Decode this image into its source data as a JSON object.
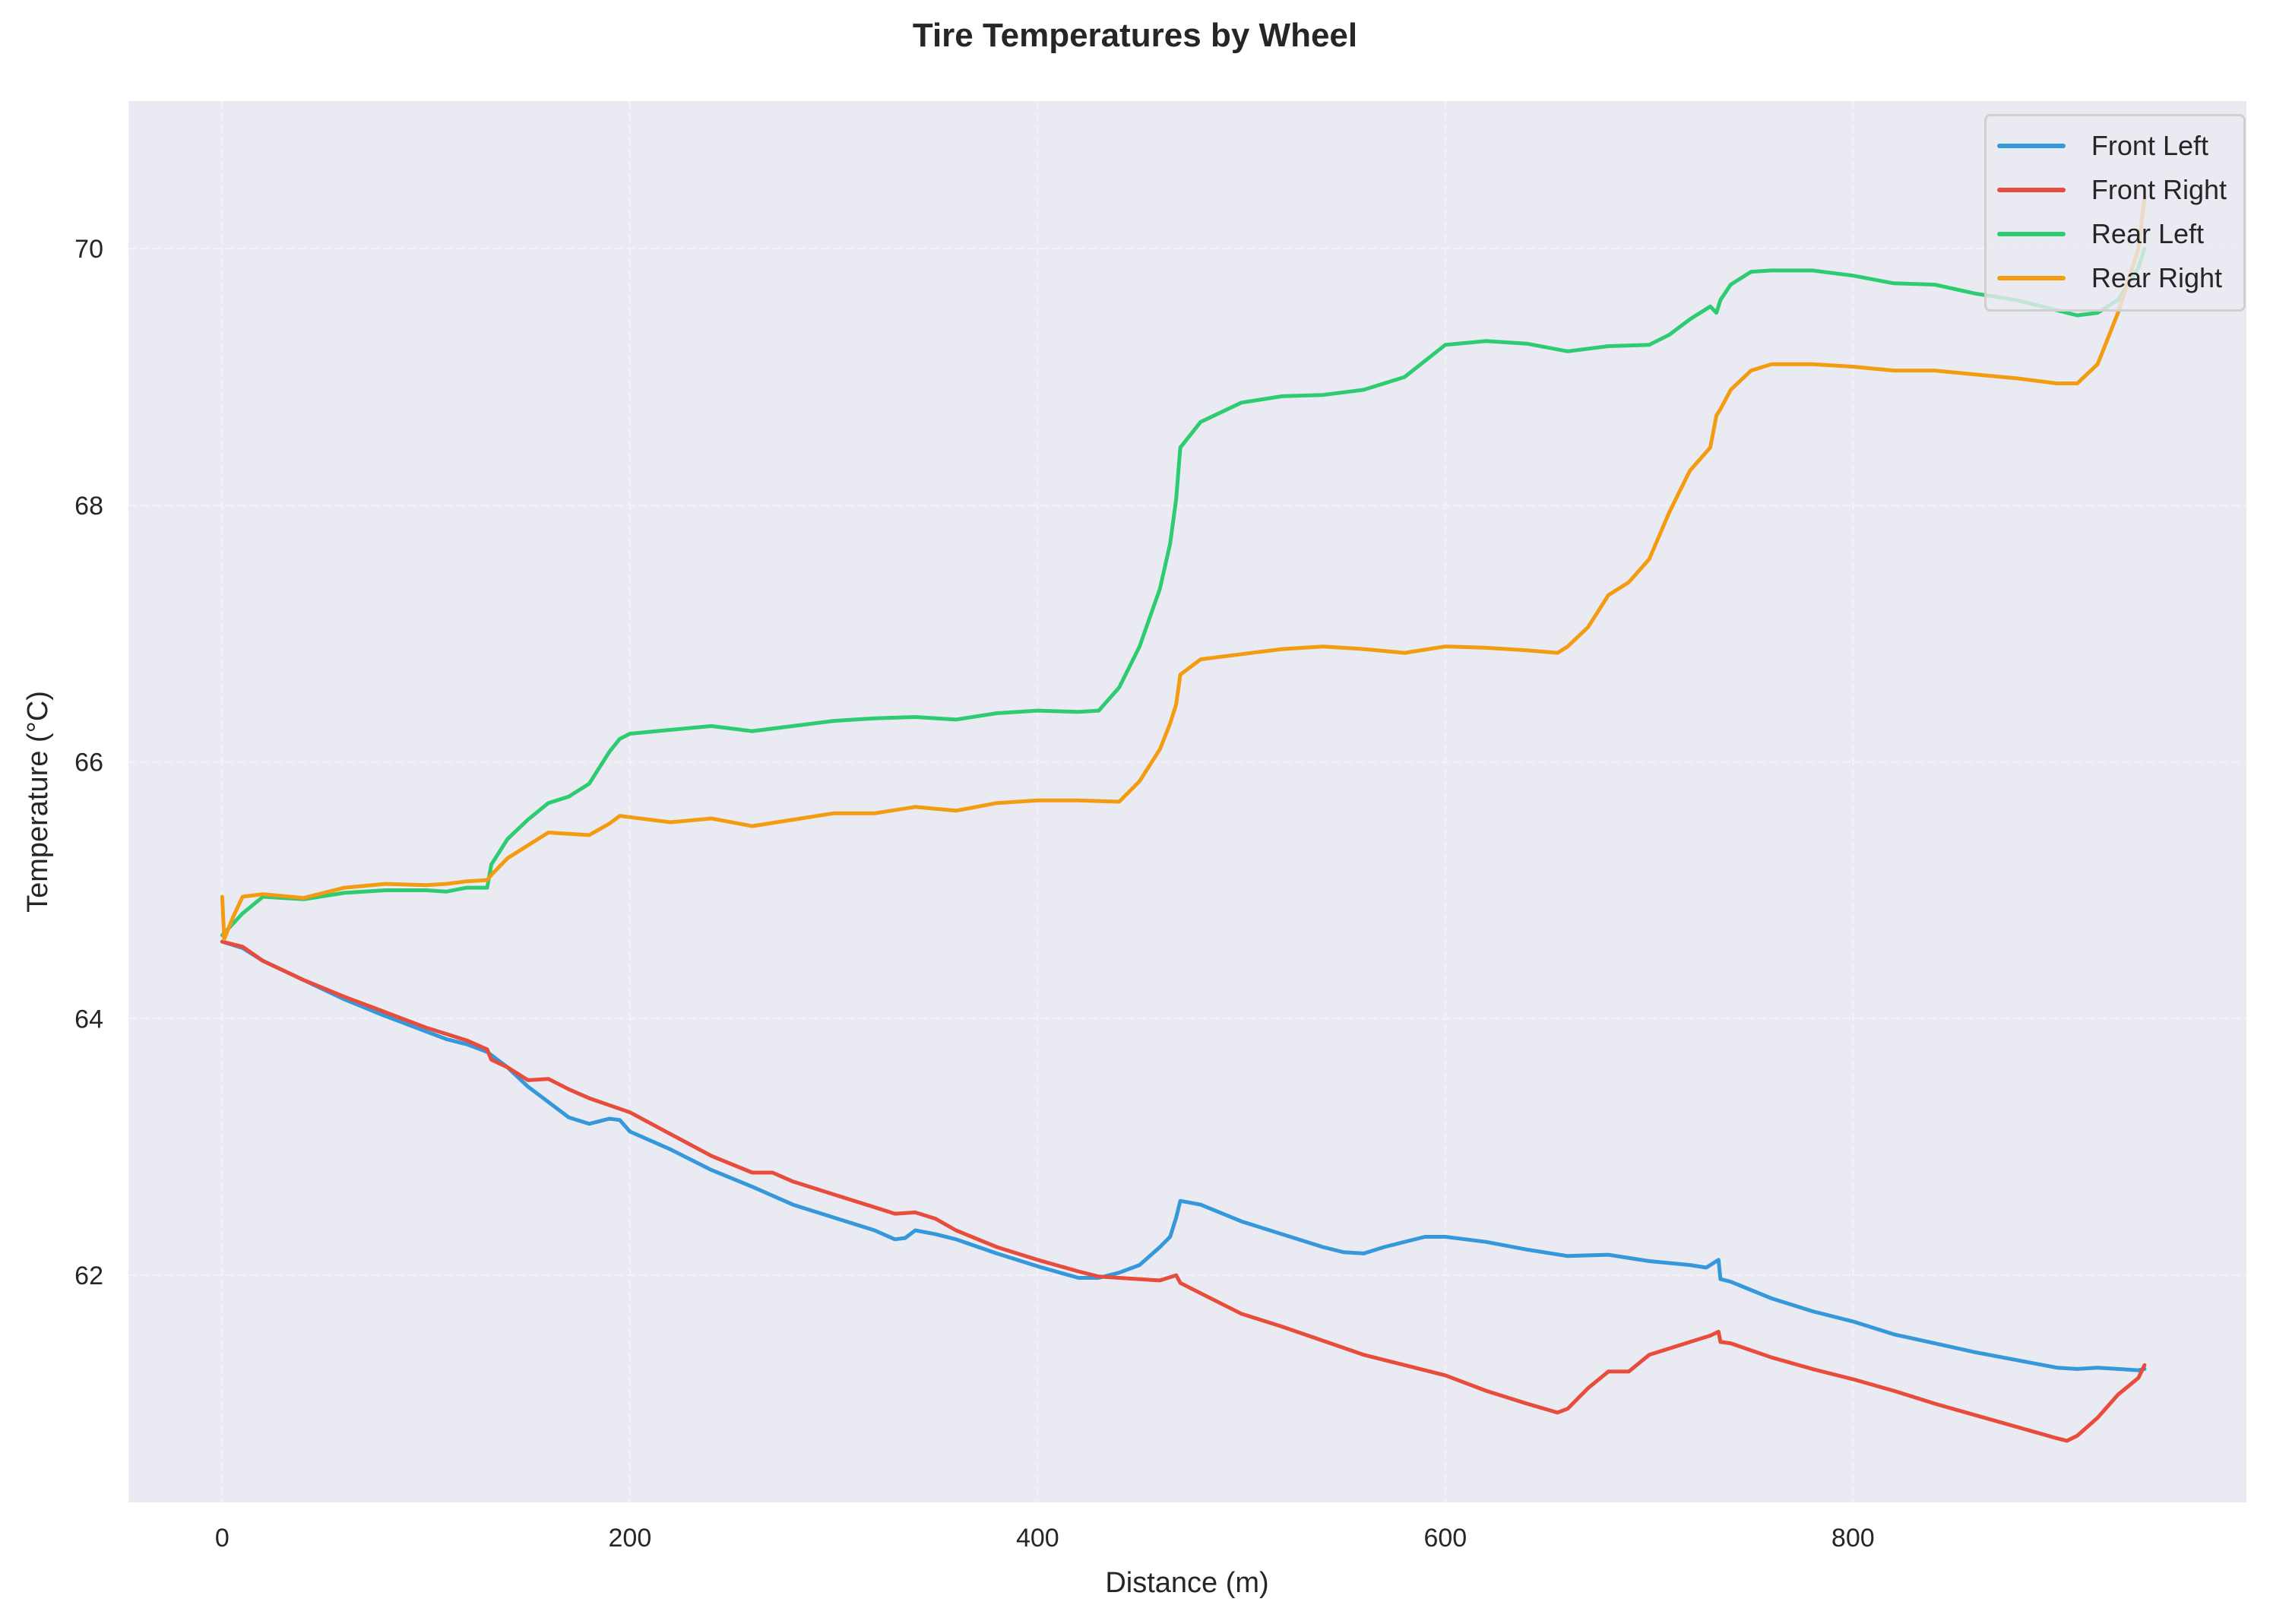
{
  "chart": {
    "title": "Tire Temperatures by Wheel",
    "xlabel": "Distance (m)",
    "ylabel": "Temperature (°C)"
  },
  "chart_data": {
    "type": "line",
    "title": "Tire Temperatures by Wheel",
    "xlabel": "Distance (m)",
    "ylabel": "Temperature (°C)",
    "xlim": [
      -46,
      993
    ],
    "ylim": [
      60.23,
      71.15
    ],
    "xticks": [
      0,
      200,
      400,
      600,
      800
    ],
    "yticks": [
      62,
      64,
      66,
      68,
      70
    ],
    "grid": true,
    "legend_position": "upper right",
    "background": "#EAEAF2",
    "series": [
      {
        "name": "Front Left",
        "color": "#3498DB",
        "x": [
          0,
          10,
          20,
          40,
          60,
          80,
          100,
          110,
          120,
          130,
          140,
          150,
          160,
          170,
          180,
          190,
          195,
          200,
          220,
          240,
          260,
          280,
          300,
          320,
          330,
          335,
          340,
          350,
          360,
          380,
          400,
          420,
          430,
          440,
          450,
          460,
          465,
          468,
          470,
          480,
          500,
          520,
          540,
          550,
          560,
          570,
          580,
          590,
          600,
          620,
          640,
          660,
          680,
          700,
          720,
          728,
          734,
          735,
          740,
          760,
          780,
          800,
          820,
          840,
          860,
          880,
          900,
          910,
          920,
          930,
          940,
          943
        ],
        "y": [
          64.6,
          64.55,
          64.45,
          64.3,
          64.15,
          64.02,
          63.9,
          63.84,
          63.8,
          63.74,
          63.62,
          63.47,
          63.35,
          63.23,
          63.18,
          63.22,
          63.21,
          63.12,
          62.98,
          62.82,
          62.69,
          62.55,
          62.45,
          62.35,
          62.28,
          62.29,
          62.35,
          62.32,
          62.28,
          62.17,
          62.07,
          61.98,
          61.98,
          62.02,
          62.08,
          62.22,
          62.3,
          62.45,
          62.58,
          62.55,
          62.42,
          62.32,
          62.22,
          62.18,
          62.17,
          62.22,
          62.26,
          62.3,
          62.3,
          62.26,
          62.2,
          62.15,
          62.16,
          62.11,
          62.08,
          62.06,
          62.12,
          61.97,
          61.95,
          61.82,
          61.72,
          61.64,
          61.54,
          61.47,
          61.4,
          61.34,
          61.28,
          61.27,
          61.28,
          61.27,
          61.26,
          61.27
        ]
      },
      {
        "name": "Front Right",
        "color": "#E74C3C",
        "x": [
          0,
          10,
          20,
          40,
          60,
          80,
          100,
          110,
          120,
          130,
          132,
          140,
          150,
          160,
          170,
          180,
          200,
          220,
          240,
          260,
          270,
          280,
          300,
          320,
          330,
          340,
          350,
          360,
          380,
          400,
          420,
          430,
          440,
          460,
          468,
          470,
          480,
          500,
          520,
          540,
          560,
          580,
          600,
          620,
          640,
          655,
          660,
          670,
          680,
          690,
          700,
          720,
          730,
          734,
          735,
          740,
          760,
          780,
          800,
          820,
          840,
          860,
          880,
          900,
          905,
          910,
          920,
          930,
          940,
          943
        ],
        "y": [
          64.6,
          64.56,
          64.45,
          64.3,
          64.17,
          64.05,
          63.93,
          63.88,
          63.83,
          63.76,
          63.68,
          63.62,
          63.52,
          63.53,
          63.45,
          63.38,
          63.27,
          63.1,
          62.93,
          62.8,
          62.8,
          62.73,
          62.63,
          62.53,
          62.48,
          62.49,
          62.44,
          62.35,
          62.22,
          62.12,
          62.03,
          61.99,
          61.98,
          61.96,
          62.0,
          61.94,
          61.86,
          61.7,
          61.6,
          61.49,
          61.38,
          61.3,
          61.22,
          61.1,
          61.0,
          60.93,
          60.96,
          61.12,
          61.25,
          61.25,
          61.38,
          61.48,
          61.53,
          61.56,
          61.48,
          61.47,
          61.36,
          61.27,
          61.19,
          61.1,
          61.0,
          60.91,
          60.82,
          60.73,
          60.71,
          60.75,
          60.89,
          61.07,
          61.2,
          61.3
        ]
      },
      {
        "name": "Rear Left",
        "color": "#2ECC71",
        "x": [
          0,
          10,
          20,
          40,
          60,
          80,
          100,
          110,
          120,
          130,
          132,
          140,
          150,
          160,
          170,
          180,
          190,
          195,
          200,
          220,
          240,
          260,
          280,
          300,
          320,
          340,
          360,
          380,
          400,
          420,
          430,
          440,
          450,
          460,
          465,
          468,
          470,
          480,
          500,
          520,
          540,
          560,
          580,
          600,
          620,
          640,
          660,
          680,
          700,
          710,
          720,
          730,
          733,
          735,
          740,
          750,
          760,
          780,
          800,
          820,
          840,
          860,
          880,
          900,
          910,
          920,
          930,
          940,
          943
        ],
        "y": [
          64.65,
          64.82,
          64.95,
          64.93,
          64.98,
          65.0,
          65.0,
          64.99,
          65.02,
          65.02,
          65.2,
          65.4,
          65.55,
          65.68,
          65.73,
          65.83,
          66.08,
          66.18,
          66.22,
          66.25,
          66.28,
          66.24,
          66.28,
          66.32,
          66.34,
          66.35,
          66.33,
          66.38,
          66.4,
          66.39,
          66.4,
          66.58,
          66.9,
          67.35,
          67.7,
          68.05,
          68.45,
          68.65,
          68.8,
          68.85,
          68.86,
          68.9,
          69.0,
          69.25,
          69.28,
          69.26,
          69.2,
          69.24,
          69.25,
          69.33,
          69.45,
          69.55,
          69.5,
          69.6,
          69.72,
          69.82,
          69.83,
          69.83,
          69.79,
          69.73,
          69.72,
          69.65,
          69.6,
          69.52,
          69.48,
          69.5,
          69.6,
          69.85,
          70.0
        ]
      },
      {
        "name": "Rear Right",
        "color": "#F39C12",
        "x": [
          0,
          1,
          5,
          10,
          20,
          40,
          60,
          80,
          100,
          110,
          120,
          130,
          132,
          140,
          150,
          160,
          170,
          180,
          190,
          195,
          200,
          220,
          240,
          260,
          280,
          300,
          320,
          340,
          360,
          380,
          400,
          420,
          440,
          450,
          460,
          465,
          468,
          470,
          480,
          500,
          520,
          540,
          560,
          580,
          600,
          620,
          640,
          655,
          660,
          670,
          680,
          690,
          700,
          710,
          720,
          730,
          733,
          735,
          740,
          750,
          760,
          780,
          800,
          820,
          840,
          860,
          880,
          900,
          910,
          920,
          930,
          940,
          943
        ],
        "y": [
          64.95,
          64.62,
          64.78,
          64.95,
          64.97,
          64.94,
          65.02,
          65.05,
          65.04,
          65.05,
          65.07,
          65.08,
          65.12,
          65.25,
          65.35,
          65.45,
          65.44,
          65.43,
          65.52,
          65.58,
          65.57,
          65.53,
          65.56,
          65.5,
          65.55,
          65.6,
          65.6,
          65.65,
          65.62,
          65.68,
          65.7,
          65.7,
          65.69,
          65.85,
          66.1,
          66.3,
          66.45,
          66.68,
          66.8,
          66.84,
          66.88,
          66.9,
          66.88,
          66.85,
          66.9,
          66.89,
          66.87,
          66.85,
          66.9,
          67.05,
          67.3,
          67.4,
          67.58,
          67.95,
          68.27,
          68.45,
          68.7,
          68.75,
          68.9,
          69.05,
          69.1,
          69.1,
          69.08,
          69.05,
          69.05,
          69.02,
          68.99,
          68.95,
          68.95,
          69.1,
          69.5,
          70.0,
          70.4
        ]
      }
    ]
  }
}
